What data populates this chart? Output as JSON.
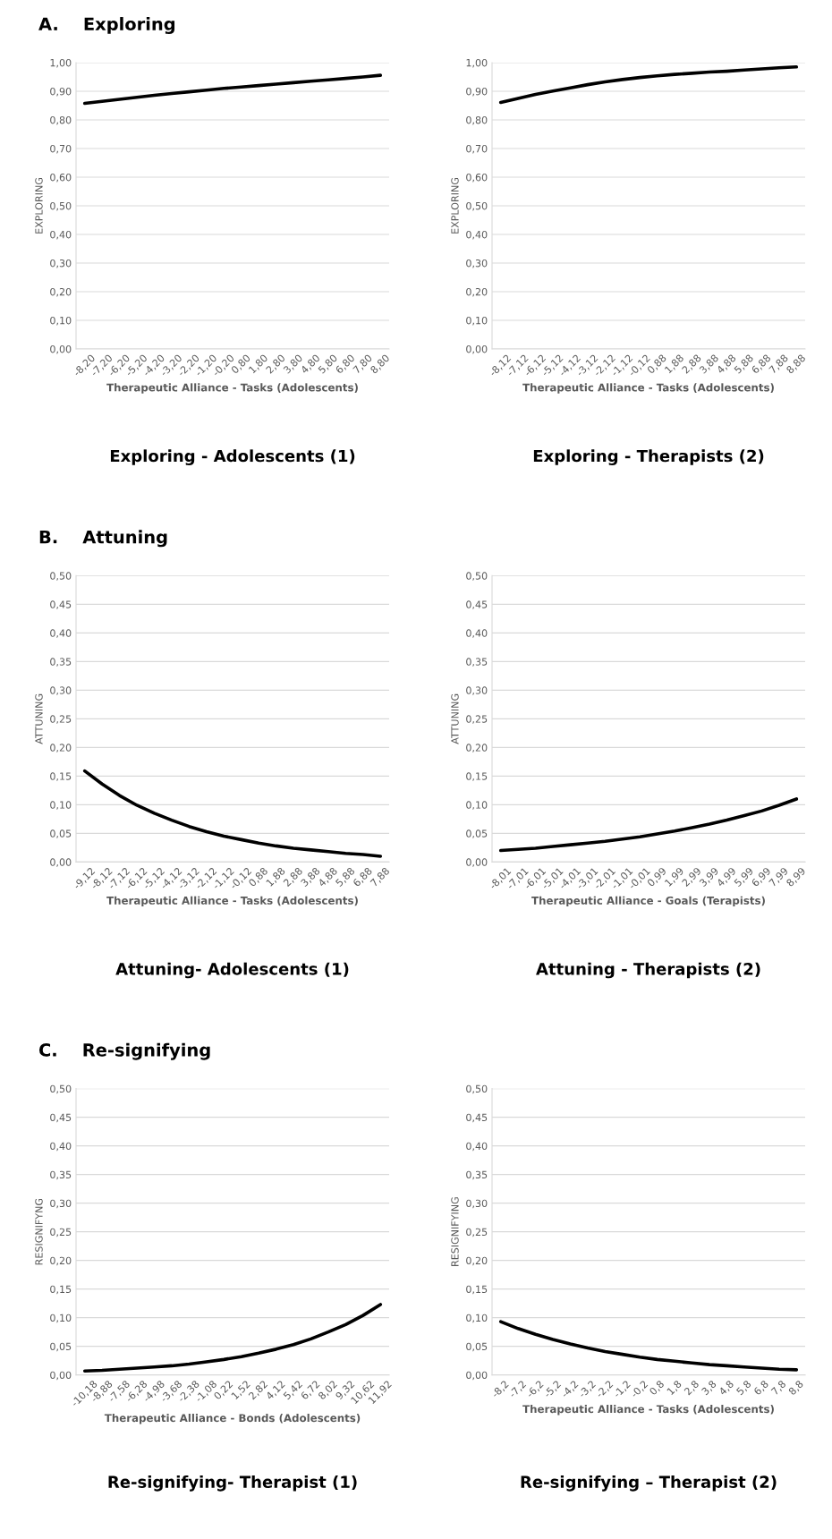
{
  "chart_data": [
    {
      "type": "line",
      "annotations": [
        "A.    Exploring"
      ],
      "title": "Exploring - Adolescents (1)",
      "xlabel": "Therapeutic Alliance - Tasks (Adolescents)",
      "ylabel": "EXPLORING",
      "grid": "y",
      "categories": [
        "-8,20",
        "-7,20",
        "-6,20",
        "-5,20",
        "-4,20",
        "-3,20",
        "-2,20",
        "-1,20",
        "-0,20",
        "0,80",
        "1,80",
        "2,80",
        "3,80",
        "4,80",
        "5,80",
        "6,80",
        "7,80",
        "8,80"
      ],
      "series": [
        {
          "color": "#000000",
          "values": [
            0.858,
            0.865,
            0.872,
            0.879,
            0.886,
            0.892,
            0.898,
            0.904,
            0.91,
            0.915,
            0.92,
            0.925,
            0.93,
            0.935,
            0.94,
            0.945,
            0.95,
            0.956
          ]
        }
      ],
      "ylim": [
        0,
        1
      ],
      "yticks": [
        {
          "value": 0,
          "label": "0,00"
        },
        {
          "value": 0.1,
          "label": "0,10"
        },
        {
          "value": 0.2,
          "label": "0,20"
        },
        {
          "value": 0.3,
          "label": "0,30"
        },
        {
          "value": 0.4,
          "label": "0,40"
        },
        {
          "value": 0.5,
          "label": "0,50"
        },
        {
          "value": 0.6,
          "label": "0,60"
        },
        {
          "value": 0.7,
          "label": "0,70"
        },
        {
          "value": 0.8,
          "label": "0,80"
        },
        {
          "value": 0.9,
          "label": "0,90"
        },
        {
          "value": 1,
          "label": "1,00"
        }
      ]
    },
    {
      "type": "line",
      "title": "Exploring - Therapists (2)",
      "xlabel": "Therapeutic Alliance - Tasks (Adolescents)",
      "ylabel": "EXPLORING",
      "grid": "y",
      "categories": [
        "-8,12",
        "-7,12",
        "-6,12",
        "-5,12",
        "-4,12",
        "-3,12",
        "-2,12",
        "-1,12",
        "-0,12",
        "0,88",
        "1,88",
        "2,88",
        "3,88",
        "4,88",
        "5,88",
        "6,88",
        "7,88",
        "8,88"
      ],
      "series": [
        {
          "color": "#000000",
          "values": [
            0.861,
            0.875,
            0.889,
            0.901,
            0.912,
            0.923,
            0.933,
            0.941,
            0.948,
            0.954,
            0.959,
            0.963,
            0.967,
            0.97,
            0.974,
            0.978,
            0.982,
            0.985
          ]
        }
      ],
      "ylim": [
        0,
        1
      ],
      "yticks": [
        {
          "value": 0,
          "label": "0,00"
        },
        {
          "value": 0.1,
          "label": "0,10"
        },
        {
          "value": 0.2,
          "label": "0,20"
        },
        {
          "value": 0.3,
          "label": "0,30"
        },
        {
          "value": 0.4,
          "label": "0,40"
        },
        {
          "value": 0.5,
          "label": "0,50"
        },
        {
          "value": 0.6,
          "label": "0,60"
        },
        {
          "value": 0.7,
          "label": "0,70"
        },
        {
          "value": 0.8,
          "label": "0,80"
        },
        {
          "value": 0.9,
          "label": "0,90"
        },
        {
          "value": 1,
          "label": "1,00"
        }
      ]
    },
    {
      "type": "line",
      "annotations": [
        "B.    Attuning"
      ],
      "title": "Attuning- Adolescents (1)",
      "xlabel": "Therapeutic Alliance - Tasks (Adolescents)",
      "ylabel": "ATTUNING",
      "grid": "y",
      "categories": [
        "-9,12",
        "-8,12",
        "-7,12",
        "-6,12",
        "-5,12",
        "-4,12",
        "-3,12",
        "-2,12",
        "-1,12",
        "-0,12",
        "0,88",
        "1,88",
        "2,88",
        "3,88",
        "4,88",
        "5,88",
        "6,88",
        "7,88"
      ],
      "series": [
        {
          "color": "#000000",
          "values": [
            0.159,
            0.136,
            0.116,
            0.099,
            0.085,
            0.073,
            0.062,
            0.053,
            0.045,
            0.039,
            0.033,
            0.028,
            0.024,
            0.021,
            0.018,
            0.015,
            0.013,
            0.01
          ]
        }
      ],
      "ylim": [
        0,
        0.5
      ],
      "yticks": [
        {
          "value": 0,
          "label": "0,00"
        },
        {
          "value": 0.05,
          "label": "0,05"
        },
        {
          "value": 0.1,
          "label": "0,10"
        },
        {
          "value": 0.15,
          "label": "0,15"
        },
        {
          "value": 0.2,
          "label": "0,20"
        },
        {
          "value": 0.25,
          "label": "0,25"
        },
        {
          "value": 0.3,
          "label": "0,30"
        },
        {
          "value": 0.35,
          "label": "0,35"
        },
        {
          "value": 0.4,
          "label": "0,40"
        },
        {
          "value": 0.45,
          "label": "0,45"
        },
        {
          "value": 0.5,
          "label": "0,50"
        }
      ]
    },
    {
      "type": "line",
      "title": "Attuning - Therapists (2)",
      "xlabel": "Therapeutic Alliance - Goals (Terapists)",
      "ylabel": "ATTUNING",
      "grid": "y",
      "categories": [
        "-8,01",
        "-7,01",
        "-6,01",
        "-5,01",
        "-4,01",
        "-3,01",
        "-2,01",
        "-1,01",
        "-0,01",
        "0,99",
        "1,99",
        "2,99",
        "3,99",
        "4,99",
        "5,99",
        "6,99",
        "7,99",
        "8,99"
      ],
      "series": [
        {
          "color": "#000000",
          "values": [
            0.02,
            0.022,
            0.024,
            0.027,
            0.03,
            0.033,
            0.036,
            0.04,
            0.044,
            0.049,
            0.054,
            0.06,
            0.066,
            0.073,
            0.081,
            0.089,
            0.099,
            0.11
          ]
        }
      ],
      "ylim": [
        0,
        0.5
      ],
      "yticks": [
        {
          "value": 0,
          "label": "0,00"
        },
        {
          "value": 0.05,
          "label": "0,05"
        },
        {
          "value": 0.1,
          "label": "0,10"
        },
        {
          "value": 0.15,
          "label": "0,15"
        },
        {
          "value": 0.2,
          "label": "0,20"
        },
        {
          "value": 0.25,
          "label": "0,25"
        },
        {
          "value": 0.3,
          "label": "0,30"
        },
        {
          "value": 0.35,
          "label": "0,35"
        },
        {
          "value": 0.4,
          "label": "0,40"
        },
        {
          "value": 0.45,
          "label": "0,45"
        },
        {
          "value": 0.5,
          "label": "0,50"
        }
      ]
    },
    {
      "type": "line",
      "annotations": [
        "C.    Re-signifying"
      ],
      "title": "Re-signifying- Therapist (1)",
      "xlabel": "Therapeutic Alliance - Bonds (Adolescents)",
      "ylabel": "RESIGNIFYNG",
      "grid": "y",
      "categories": [
        "-10,18",
        "-8,88",
        "-7,58",
        "-6,28",
        "-4,98",
        "-3,68",
        "-2,38",
        "-1,08",
        "0,22",
        "1,52",
        "2,82",
        "4,12",
        "5,42",
        "6,72",
        "8,02",
        "9,32",
        "10,62",
        "11,92"
      ],
      "series": [
        {
          "color": "#000000",
          "values": [
            0.007,
            0.008,
            0.01,
            0.012,
            0.014,
            0.016,
            0.019,
            0.023,
            0.027,
            0.032,
            0.038,
            0.045,
            0.053,
            0.063,
            0.075,
            0.088,
            0.104,
            0.123
          ]
        }
      ],
      "ylim": [
        0,
        0.5
      ],
      "yticks": [
        {
          "value": 0,
          "label": "0,00"
        },
        {
          "value": 0.05,
          "label": "0,05"
        },
        {
          "value": 0.1,
          "label": "0,10"
        },
        {
          "value": 0.15,
          "label": "0,15"
        },
        {
          "value": 0.2,
          "label": "0,20"
        },
        {
          "value": 0.25,
          "label": "0,25"
        },
        {
          "value": 0.3,
          "label": "0,30"
        },
        {
          "value": 0.35,
          "label": "0,35"
        },
        {
          "value": 0.4,
          "label": "0,40"
        },
        {
          "value": 0.45,
          "label": "0,45"
        },
        {
          "value": 0.5,
          "label": "0,50"
        }
      ]
    },
    {
      "type": "line",
      "title": "Re-signifying – Therapist (2)",
      "xlabel": "Therapeutic Alliance - Tasks (Adolescents)",
      "ylabel": "RESIGNIFYING",
      "grid": "y",
      "categories": [
        "-8,2",
        "-7,2",
        "-6,2",
        "-5,2",
        "-4,2",
        "-3,2",
        "-2,2",
        "-1,2",
        "-0,2",
        "0,8",
        "1,8",
        "2,8",
        "3,8",
        "4,8",
        "5,8",
        "6,8",
        "7,8",
        "8,8"
      ],
      "series": [
        {
          "color": "#000000",
          "values": [
            0.093,
            0.081,
            0.071,
            0.062,
            0.054,
            0.047,
            0.041,
            0.036,
            0.031,
            0.027,
            0.024,
            0.021,
            0.018,
            0.016,
            0.014,
            0.012,
            0.01,
            0.009
          ]
        }
      ],
      "ylim": [
        0,
        0.5
      ],
      "yticks": [
        {
          "value": 0,
          "label": "0,00"
        },
        {
          "value": 0.05,
          "label": "0,05"
        },
        {
          "value": 0.1,
          "label": "0,10"
        },
        {
          "value": 0.15,
          "label": "0,15"
        },
        {
          "value": 0.2,
          "label": "0,20"
        },
        {
          "value": 0.25,
          "label": "0,25"
        },
        {
          "value": 0.3,
          "label": "0,30"
        },
        {
          "value": 0.35,
          "label": "0,35"
        },
        {
          "value": 0.4,
          "label": "0,40"
        },
        {
          "value": 0.45,
          "label": "0,45"
        },
        {
          "value": 0.5,
          "label": "0,50"
        }
      ]
    }
  ]
}
